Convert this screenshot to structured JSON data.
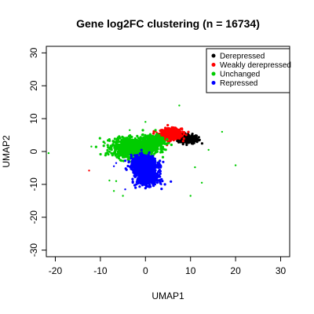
{
  "chart_data": {
    "type": "scatter",
    "title": "Gene log2FC clustering (n = 16734)",
    "xlabel": "UMAP1",
    "ylabel": "UMAP2",
    "xlim": [
      -22,
      32
    ],
    "ylim": [
      -32,
      32
    ],
    "xticks": [
      "-20",
      "-10",
      "0",
      "10",
      "20",
      "30"
    ],
    "yticks": [
      "-30",
      "-20",
      "-10",
      "0",
      "10",
      "20",
      "30"
    ],
    "legend_position": "top-right",
    "series": [
      {
        "name": "Derepressed",
        "color": "#000000",
        "clusters": [
          {
            "cx": 9.5,
            "cy": 3.8,
            "sx": 1.5,
            "sy": 0.9,
            "n": 220
          }
        ],
        "points": [
          [
            8.0,
            4.8
          ],
          [
            11.6,
            3.2
          ]
        ]
      },
      {
        "name": "Weakly derepressed",
        "color": "#ff0000",
        "clusters": [
          {
            "cx": 5.5,
            "cy": 5.3,
            "sx": 1.7,
            "sy": 1.1,
            "n": 520
          }
        ],
        "points": [
          [
            2.5,
            5.8
          ],
          [
            7.8,
            7.0
          ],
          [
            -6.0,
            3.5
          ],
          [
            3.5,
            3.8
          ],
          [
            -12.5,
            -5.8
          ]
        ]
      },
      {
        "name": "Unchanged",
        "color": "#00cc00",
        "clusters": [
          {
            "cx": -2.5,
            "cy": 1.2,
            "sx": 3.0,
            "sy": 1.8,
            "n": 1300
          },
          {
            "cx": 1.8,
            "cy": 3.0,
            "sx": 1.6,
            "sy": 1.3,
            "n": 300
          }
        ],
        "points": [
          [
            -21.5,
            -0.5
          ],
          [
            7.5,
            14.0
          ],
          [
            17.0,
            6.0
          ],
          [
            20.0,
            -4.2
          ],
          [
            11.0,
            -4.8
          ],
          [
            12.5,
            -9.5
          ],
          [
            -8.0,
            -8.8
          ],
          [
            -9.0,
            2.5
          ],
          [
            -12.0,
            1.5
          ],
          [
            -5.0,
            -13.5
          ],
          [
            10.0,
            -13.5
          ],
          [
            0.0,
            9.0
          ],
          [
            -3.5,
            6.5
          ],
          [
            3.0,
            -3.0
          ],
          [
            14.0,
            0.5
          ],
          [
            -7.0,
            -12.0
          ],
          [
            -6.5,
            -9.0
          ]
        ]
      },
      {
        "name": "Repressed",
        "color": "#0000ff",
        "clusters": [
          {
            "cx": -0.3,
            "cy": -4.0,
            "sx": 1.9,
            "sy": 1.8,
            "n": 700
          },
          {
            "cx": 0.5,
            "cy": -8.2,
            "sx": 1.6,
            "sy": 1.4,
            "n": 450
          }
        ],
        "points": [
          [
            -7.0,
            -4.5
          ],
          [
            -4.5,
            -11.5
          ],
          [
            3.5,
            -10.0
          ],
          [
            -6.5,
            -3.5
          ]
        ]
      }
    ]
  }
}
